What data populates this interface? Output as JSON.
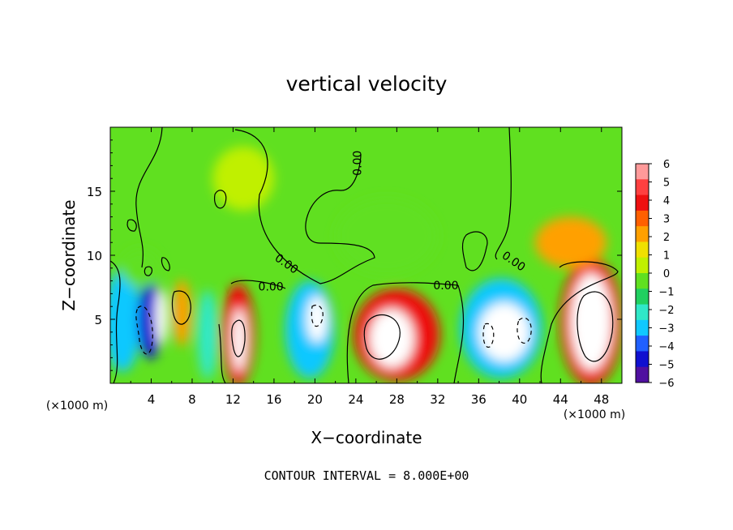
{
  "chart_data": {
    "type": "heatmap",
    "title": "vertical velocity",
    "xlabel": "X−coordinate",
    "ylabel": "Z−coordinate",
    "x_unit_left": "(×1000 m)",
    "x_unit_right": "(×1000 m)",
    "xlim": [
      0,
      50
    ],
    "ylim": [
      0,
      20
    ],
    "xticks": [
      4,
      8,
      12,
      16,
      20,
      24,
      28,
      32,
      36,
      40,
      44,
      48
    ],
    "yticks": [
      5,
      10,
      15
    ],
    "contour_interval_text": "CONTOUR INTERVAL = 8.000E+00",
    "contour_labels": [
      {
        "text": "0.00",
        "x": 24.2,
        "y": 17.2,
        "rotate": -90
      },
      {
        "text": "0.00",
        "x": 15.7,
        "y": 7.5,
        "rotate": 0
      },
      {
        "text": "0.00",
        "x": 32.8,
        "y": 7.6,
        "rotate": 0
      },
      {
        "text": "0.00",
        "x": 17.2,
        "y": 9.3,
        "rotate": 35
      },
      {
        "text": "0.00",
        "x": 39.4,
        "y": 9.5,
        "rotate": 35
      }
    ],
    "colorbar": {
      "ticks": [
        6,
        5,
        4,
        3,
        2,
        1,
        0,
        -1,
        -2,
        -3,
        -4,
        -5,
        -6
      ],
      "tick_labels": [
        "6",
        "5",
        "4",
        "3",
        "2",
        "1",
        "0",
        "−1",
        "−2",
        "−3",
        "−4",
        "−5",
        "−6"
      ],
      "colors": [
        "#ff9a9a",
        "#ff4040",
        "#ee1010",
        "#ff6000",
        "#ffa000",
        "#f0e000",
        "#c0f000",
        "#60e020",
        "#20d060",
        "#30e8c8",
        "#10c8ff",
        "#2060ff",
        "#1010d0",
        "#5010a0"
      ]
    },
    "cells": [
      {
        "x": 1.2,
        "y": 4.9,
        "w": 3.6,
        "h": 8.0,
        "v": -4
      },
      {
        "x": 3.9,
        "y": 4.9,
        "w": 2.4,
        "h": 6.0,
        "v": -6
      },
      {
        "x": 5.0,
        "y": 5.2,
        "w": 1.2,
        "h": 4.4,
        "v": -7
      },
      {
        "x": 7.0,
        "y": 5.5,
        "w": 1.8,
        "h": 5.2,
        "v": 2
      },
      {
        "x": 9.5,
        "y": 3.8,
        "w": 2.0,
        "h": 7.0,
        "v": -3
      },
      {
        "x": 12.5,
        "y": 3.8,
        "w": 3.2,
        "h": 8.0,
        "v": 4
      },
      {
        "x": 12.6,
        "y": 3.4,
        "w": 1.4,
        "h": 5.0,
        "v": 6.5
      },
      {
        "x": 19.5,
        "y": 4.2,
        "w": 4.8,
        "h": 7.6,
        "v": -4
      },
      {
        "x": 20.2,
        "y": 5.0,
        "w": 2.0,
        "h": 3.6,
        "v": -7
      },
      {
        "x": 28.0,
        "y": 3.8,
        "w": 8.4,
        "h": 7.2,
        "v": 4
      },
      {
        "x": 27.5,
        "y": 3.5,
        "w": 4.4,
        "h": 4.6,
        "v": 6.5
      },
      {
        "x": 38.2,
        "y": 4.3,
        "w": 8.0,
        "h": 7.8,
        "v": -4
      },
      {
        "x": 38.5,
        "y": 4.0,
        "w": 5.0,
        "h": 4.6,
        "v": -7
      },
      {
        "x": 47.0,
        "y": 4.8,
        "w": 6.0,
        "h": 10.0,
        "v": 4
      },
      {
        "x": 47.0,
        "y": 4.8,
        "w": 4.0,
        "h": 7.6,
        "v": 6.5
      },
      {
        "x": 27.0,
        "y": 11.5,
        "w": 10.0,
        "h": 6.0,
        "v": -1.5
      },
      {
        "x": 13.0,
        "y": 16.0,
        "w": 6.0,
        "h": 5.0,
        "v": -0.8
      },
      {
        "x": 45.0,
        "y": 11.0,
        "w": 7.0,
        "h": 4.0,
        "v": 1.5
      },
      {
        "x": 3.0,
        "y": 9.0,
        "w": 4.0,
        "h": 3.0,
        "v": -1.8
      }
    ]
  }
}
